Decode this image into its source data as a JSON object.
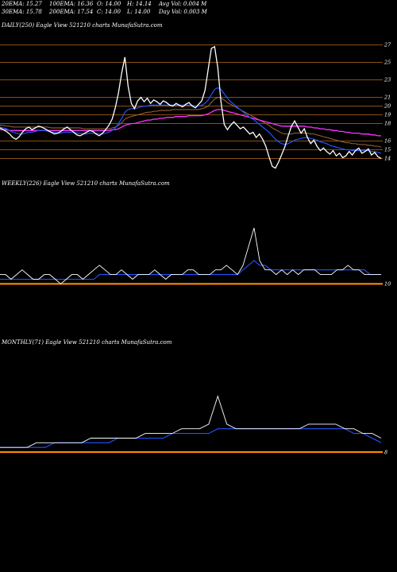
{
  "header": {
    "row1": [
      "20EMA: 15.27",
      "100EMA: 16.36",
      "O: 14.00",
      "H: 14.14",
      "Avg Vol: 0.004 M"
    ],
    "row2": [
      "30EMA: 15.78",
      "200EMA: 17.54",
      "C: 14.00",
      "L: 14.00",
      "Day Vol: 0.003 M"
    ]
  },
  "colors": {
    "background": "#000000",
    "price": "#ffffff",
    "ema_blue": "#2255ff",
    "ema_magenta": "#ff33ff",
    "ema_brown": "#b07040",
    "level_lines": "#b86a1e",
    "baseline": "#ff8800"
  },
  "chart_data": [
    {
      "type": "line",
      "title": "DAILY(250) Eagle  View  521210  charts MunafaSutra.com",
      "y_ticks": [
        "27",
        "25",
        "23",
        "21",
        "20",
        "19",
        "18",
        "16",
        "15",
        "14"
      ],
      "y_tick_values": [
        27,
        25,
        23,
        21,
        20,
        19,
        18,
        16,
        15,
        14
      ],
      "ylim": [
        12.5,
        28.5
      ],
      "price_series": [
        17.5,
        17.3,
        17.1,
        16.8,
        16.4,
        16.2,
        16.5,
        17.0,
        17.4,
        17.6,
        17.3,
        17.5,
        17.7,
        17.6,
        17.4,
        17.2,
        17.0,
        16.8,
        16.9,
        17.1,
        17.4,
        17.6,
        17.3,
        17.0,
        16.7,
        16.6,
        16.8,
        17.0,
        17.2,
        17.1,
        16.8,
        16.6,
        16.9,
        17.3,
        17.8,
        18.5,
        19.8,
        21.5,
        23.8,
        25.6,
        22.3,
        20.3,
        19.7,
        20.6,
        21.0,
        20.5,
        20.9,
        20.3,
        20.7,
        20.5,
        20.2,
        20.6,
        20.4,
        20.1,
        20.0,
        20.3,
        20.1,
        19.9,
        20.2,
        20.4,
        20.0,
        19.8,
        20.2,
        20.6,
        21.8,
        24.2,
        26.6,
        26.8,
        24.4,
        20.5,
        17.9,
        17.3,
        17.8,
        18.2,
        17.8,
        17.4,
        17.6,
        17.2,
        16.8,
        17.0,
        16.4,
        16.8,
        16.2,
        15.4,
        14.2,
        13.1,
        12.9,
        13.6,
        14.5,
        15.4,
        16.6,
        17.7,
        18.3,
        17.6,
        16.9,
        17.4,
        16.4,
        15.7,
        16.1,
        15.4,
        14.9,
        15.2,
        14.8,
        14.5,
        14.9,
        14.3,
        14.6,
        14.1,
        14.3,
        14.8,
        14.4,
        14.9,
        15.2,
        14.6,
        14.8,
        15.1,
        14.4,
        14.7,
        14.2,
        14.0
      ],
      "ema_blue": [
        17.6,
        17.5,
        17.4,
        17.2,
        17.0,
        16.9,
        16.8,
        16.8,
        16.9,
        17.0,
        17.0,
        17.1,
        17.2,
        17.2,
        17.2,
        17.1,
        17.0,
        17.0,
        16.9,
        16.9,
        17.0,
        17.0,
        17.0,
        17.0,
        16.9,
        16.9,
        16.8,
        16.8,
        16.9,
        16.9,
        16.9,
        16.8,
        16.8,
        16.9,
        17.0,
        17.2,
        17.5,
        18.0,
        18.6,
        19.3,
        19.6,
        19.7,
        19.7,
        19.8,
        19.9,
        20.0,
        20.0,
        20.1,
        20.1,
        20.1,
        20.1,
        20.1,
        20.1,
        20.1,
        20.1,
        20.1,
        20.1,
        20.1,
        20.1,
        20.1,
        20.1,
        20.0,
        20.0,
        20.1,
        20.3,
        20.7,
        21.3,
        21.9,
        22.1,
        21.9,
        21.4,
        20.9,
        20.5,
        20.2,
        19.9,
        19.6,
        19.3,
        19.0,
        18.7,
        18.5,
        18.2,
        17.9,
        17.6,
        17.3,
        17.0,
        16.6,
        16.2,
        15.9,
        15.7,
        15.6,
        15.7,
        15.9,
        16.1,
        16.2,
        16.3,
        16.4,
        16.4,
        16.3,
        16.2,
        16.1,
        15.9,
        15.8,
        15.7,
        15.5,
        15.4,
        15.3,
        15.2,
        15.1,
        15.0,
        15.0,
        14.9,
        14.9,
        14.9,
        14.9,
        14.9,
        14.9,
        14.8,
        14.8,
        14.7,
        14.6
      ],
      "ema_magenta": [
        17.3,
        17.3,
        17.3,
        17.2,
        17.2,
        17.2,
        17.2,
        17.2,
        17.2,
        17.2,
        17.2,
        17.2,
        17.2,
        17.2,
        17.2,
        17.2,
        17.2,
        17.2,
        17.2,
        17.2,
        17.2,
        17.2,
        17.2,
        17.2,
        17.2,
        17.2,
        17.2,
        17.2,
        17.2,
        17.2,
        17.2,
        17.2,
        17.2,
        17.2,
        17.2,
        17.3,
        17.3,
        17.4,
        17.6,
        17.8,
        17.9,
        18.0,
        18.0,
        18.1,
        18.2,
        18.3,
        18.4,
        18.4,
        18.5,
        18.5,
        18.6,
        18.6,
        18.7,
        18.7,
        18.7,
        18.8,
        18.8,
        18.8,
        18.8,
        18.9,
        18.9,
        18.9,
        18.9,
        18.9,
        19.0,
        19.1,
        19.3,
        19.5,
        19.6,
        19.6,
        19.5,
        19.4,
        19.3,
        19.2,
        19.1,
        19.0,
        18.9,
        18.8,
        18.7,
        18.6,
        18.5,
        18.4,
        18.3,
        18.2,
        18.1,
        18.0,
        17.9,
        17.8,
        17.7,
        17.7,
        17.7,
        17.7,
        17.7,
        17.7,
        17.7,
        17.7,
        17.6,
        17.6,
        17.5,
        17.5,
        17.4,
        17.4,
        17.3,
        17.3,
        17.2,
        17.2,
        17.1,
        17.1,
        17.0,
        17.0,
        16.9,
        16.9,
        16.9,
        16.8,
        16.8,
        16.8,
        16.7,
        16.7,
        16.6,
        16.6
      ],
      "ema_brown": [
        17.8,
        17.8,
        17.7,
        17.7,
        17.6,
        17.6,
        17.6,
        17.6,
        17.6,
        17.6,
        17.6,
        17.6,
        17.6,
        17.6,
        17.6,
        17.6,
        17.5,
        17.5,
        17.5,
        17.5,
        17.5,
        17.5,
        17.5,
        17.5,
        17.5,
        17.5,
        17.4,
        17.4,
        17.4,
        17.4,
        17.4,
        17.4,
        17.4,
        17.4,
        17.4,
        17.5,
        17.6,
        17.8,
        18.1,
        18.5,
        18.7,
        18.8,
        18.9,
        19.0,
        19.1,
        19.2,
        19.3,
        19.3,
        19.4,
        19.4,
        19.5,
        19.5,
        19.5,
        19.5,
        19.6,
        19.6,
        19.6,
        19.6,
        19.6,
        19.6,
        19.6,
        19.6,
        19.6,
        19.7,
        19.8,
        20.0,
        20.4,
        20.8,
        21.0,
        20.9,
        20.7,
        20.4,
        20.2,
        20.0,
        19.8,
        19.6,
        19.4,
        19.2,
        19.0,
        18.8,
        18.6,
        18.4,
        18.2,
        18.0,
        17.8,
        17.5,
        17.3,
        17.1,
        16.9,
        16.8,
        16.8,
        16.8,
        16.9,
        16.9,
        16.9,
        16.9,
        16.9,
        16.8,
        16.8,
        16.7,
        16.6,
        16.5,
        16.4,
        16.3,
        16.2,
        16.1,
        16.0,
        15.9,
        15.8,
        15.8,
        15.7,
        15.7,
        15.6,
        15.6,
        15.6,
        15.5,
        15.5,
        15.4,
        15.4,
        15.3
      ]
    },
    {
      "type": "line",
      "title": "WEEKLY(226) Eagle  View  521210  charts MunafaSutra.com",
      "y_ticks": [
        "10"
      ],
      "y_tick_values": [
        10
      ],
      "ylim": [
        0,
        30
      ],
      "price_series": [
        12,
        12,
        11,
        12,
        13,
        12,
        11,
        11,
        12,
        12,
        11,
        10,
        11,
        12,
        12,
        11,
        12,
        13,
        14,
        13,
        12,
        12,
        13,
        12,
        11,
        12,
        12,
        12,
        13,
        12,
        11,
        12,
        12,
        12,
        13,
        13,
        12,
        12,
        12,
        13,
        13,
        14,
        13,
        12,
        14,
        18,
        22,
        15,
        13,
        13,
        12,
        13,
        12,
        13,
        12,
        13,
        13,
        13,
        12,
        12,
        12,
        13,
        13,
        14,
        13,
        13,
        12,
        12,
        12,
        12
      ],
      "ema_blue": [
        11,
        11,
        11,
        11,
        11,
        11,
        11,
        11,
        11,
        11,
        11,
        11,
        11,
        11,
        11,
        11,
        11,
        11,
        12,
        12,
        12,
        12,
        12,
        12,
        12,
        12,
        12,
        12,
        12,
        12,
        12,
        12,
        12,
        12,
        12,
        12,
        12,
        12,
        12,
        12,
        12,
        12,
        12,
        12,
        13,
        14,
        15,
        14,
        14,
        13,
        13,
        13,
        13,
        13,
        13,
        13,
        13,
        13,
        13,
        13,
        13,
        13,
        13,
        13,
        13,
        13,
        13,
        12,
        12,
        12
      ],
      "baseline": 10
    },
    {
      "type": "line",
      "title": "MONTHLY(71) Eagle  View  521210  charts MunafaSutra.com",
      "y_ticks": [
        "8"
      ],
      "y_tick_values": [
        8
      ],
      "ylim": [
        0,
        30
      ],
      "price_series": [
        9,
        9,
        9,
        9,
        10,
        10,
        10,
        10,
        10,
        10,
        11,
        11,
        11,
        11,
        11,
        11,
        12,
        12,
        12,
        12,
        13,
        13,
        13,
        14,
        20,
        14,
        13,
        13,
        13,
        13,
        13,
        13,
        13,
        13,
        14,
        14,
        14,
        14,
        13,
        13,
        12,
        12,
        11
      ],
      "ema_blue": [
        9,
        9,
        9,
        9,
        9,
        9,
        10,
        10,
        10,
        10,
        10,
        10,
        10,
        11,
        11,
        11,
        11,
        11,
        11,
        12,
        12,
        12,
        12,
        12,
        13,
        13,
        13,
        13,
        13,
        13,
        13,
        13,
        13,
        13,
        13,
        13,
        13,
        13,
        13,
        12,
        12,
        11,
        10
      ],
      "baseline": 8
    }
  ]
}
